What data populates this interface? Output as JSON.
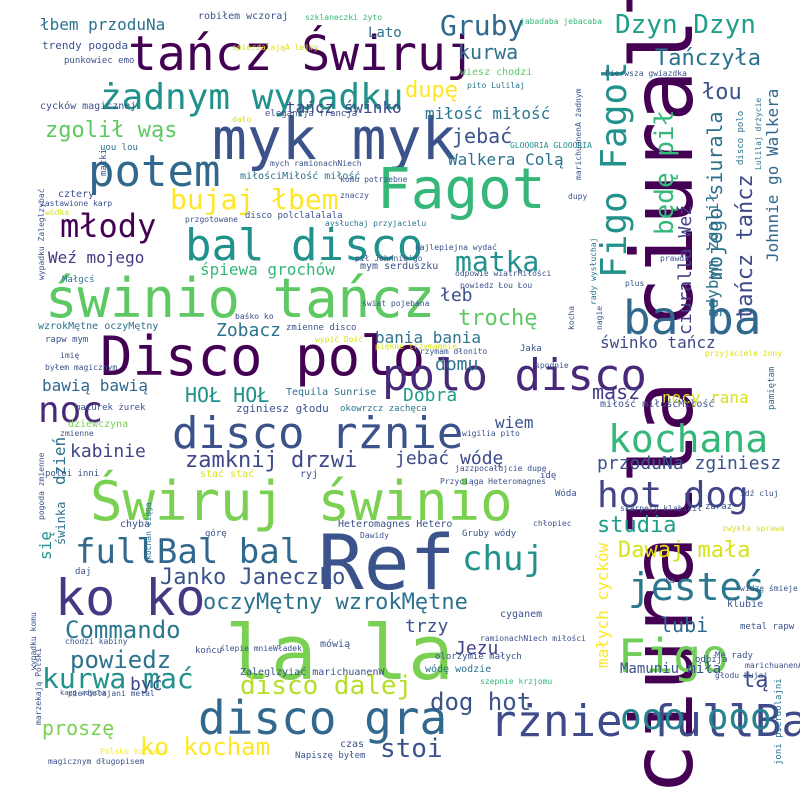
{
  "words": [
    {
      "text": "ciuralla ciuralla",
      "color": "#440154",
      "vertical": true
    },
    {
      "text": "Ref",
      "color": "#3b528b"
    },
    {
      "text": "la la",
      "color": "#7ad151"
    },
    {
      "text": "Disco polo",
      "color": "#440154"
    },
    {
      "text": "świnio tańcz",
      "color": "#5ec962"
    },
    {
      "text": "myk myk",
      "color": "#3b528b"
    },
    {
      "text": "Świruj świnio",
      "color": "#7ad151"
    },
    {
      "text": "Fagot",
      "color": "#35b779"
    },
    {
      "text": "tańcz Świruj",
      "color": "#440154"
    },
    {
      "text": "ba ba",
      "color": "#31688e"
    },
    {
      "text": "disco rżnie",
      "color": "#3b528b"
    },
    {
      "text": "bal disco",
      "color": "#21918c"
    },
    {
      "text": "polo disco",
      "color": "#482878"
    },
    {
      "text": "ko ko",
      "color": "#443983"
    },
    {
      "text": "disco gra",
      "color": "#31688e"
    },
    {
      "text": "rżnie fullBal",
      "color": "#3e4a89"
    },
    {
      "text": "Figo Fagot",
      "color": "#21918c",
      "vertical": true
    },
    {
      "text": "kochana",
      "color": "#35b779"
    },
    {
      "text": "Figo",
      "color": "#6ece58"
    },
    {
      "text": "żadnym wypadku",
      "color": "#21918c"
    },
    {
      "text": "potem",
      "color": "#31688e"
    },
    {
      "text": "hot dog",
      "color": "#414487"
    },
    {
      "text": "jesteś",
      "color": "#2a788e"
    },
    {
      "text": "ooo ooo",
      "color": "#26828e"
    },
    {
      "text": "fullBal bal",
      "color": "#31688e"
    },
    {
      "text": "chuj",
      "color": "#21918c"
    },
    {
      "text": "młody",
      "color": "#440154"
    },
    {
      "text": "noc",
      "color": "#482878"
    },
    {
      "text": "Dzyn Dzyn",
      "color": "#1f9e89"
    },
    {
      "text": "Gruby",
      "color": "#31688e"
    },
    {
      "text": "matka",
      "color": "#21918c"
    },
    {
      "text": "bujaj łbem",
      "color": "#fde725"
    },
    {
      "text": "kurwa mać",
      "color": "#21918c"
    },
    {
      "text": "Commando",
      "color": "#2a788e"
    },
    {
      "text": "powiedz",
      "color": "#2c728e"
    },
    {
      "text": "ko kocham",
      "color": "#fde725"
    },
    {
      "text": "disco dalej",
      "color": "#b5de2b"
    },
    {
      "text": "dog hot",
      "color": "#3b528b"
    },
    {
      "text": "stoi",
      "color": "#3b528b"
    },
    {
      "text": "oczyMętny wzrokMętne",
      "color": "#2c728e"
    },
    {
      "text": "zamknij drzwi",
      "color": "#3e4a89"
    },
    {
      "text": "Janko Janeczko",
      "color": "#3b528b"
    },
    {
      "text": "Dawaj mała",
      "color": "#d8e219"
    },
    {
      "text": "studia",
      "color": "#1f9e89"
    },
    {
      "text": "przoduNa zginiesz",
      "color": "#3b528b"
    },
    {
      "text": "kurwa",
      "color": "#2c728e"
    },
    {
      "text": "Tańczyła",
      "color": "#2c728e"
    },
    {
      "text": "łou",
      "color": "#3b528b"
    },
    {
      "text": "dupę",
      "color": "#fde725"
    },
    {
      "text": "będę pił",
      "color": "#35b779",
      "vertical": true
    },
    {
      "text": "tańcz tańcz",
      "color": "#3e4a89",
      "vertical": true
    },
    {
      "text": "mojego siurala",
      "color": "#2c728e",
      "vertical": true
    },
    {
      "text": "Johnnie go Walkera",
      "color": "#31688e",
      "vertical": true
    },
    {
      "text": "ciuralla Weź",
      "color": "#433e85",
      "vertical": true
    },
    {
      "text": "gdybym zgolił",
      "color": "#2c728e",
      "vertical": true
    },
    {
      "text": "zgolił wąs",
      "color": "#5ec962"
    },
    {
      "text": "jebać",
      "color": "#3b528b"
    },
    {
      "text": "miłość miłość",
      "color": "#2a788e"
    },
    {
      "text": "tańcz świnko",
      "color": "#3e4a89"
    },
    {
      "text": "Walkera Colą",
      "color": "#2c728e"
    },
    {
      "text": "Weź mojego",
      "color": "#443983"
    },
    {
      "text": "śpiewa grochów",
      "color": "#35b779"
    },
    {
      "text": "łeb",
      "color": "#3b528b"
    },
    {
      "text": "trochę",
      "color": "#5ec962"
    },
    {
      "text": "Zobacz",
      "color": "#2c728e"
    },
    {
      "text": "bania bania",
      "color": "#2c728e"
    },
    {
      "text": "domu",
      "color": "#2c728e"
    },
    {
      "text": "HOŁ HOŁ",
      "color": "#21918c"
    },
    {
      "text": "bawią bawią",
      "color": "#31688e"
    },
    {
      "text": "Dobra",
      "color": "#1f9e89"
    },
    {
      "text": "masz",
      "color": "#443983"
    },
    {
      "text": "nocy rana",
      "color": "#d8e219"
    },
    {
      "text": "świnko tańcz",
      "color": "#3e4a89"
    },
    {
      "text": "wiem",
      "color": "#3b528b"
    },
    {
      "text": "kabinie",
      "color": "#414487"
    },
    {
      "text": "jebać wódę",
      "color": "#3e4a89"
    },
    {
      "text": "dzień",
      "color": "#2c728e",
      "vertical": true
    },
    {
      "text": "się",
      "color": "#21918c",
      "vertical": true
    },
    {
      "text": "Jezu",
      "color": "#414487"
    },
    {
      "text": "trzy",
      "color": "#3b528b"
    },
    {
      "text": "lubi",
      "color": "#31688e"
    },
    {
      "text": "tą",
      "color": "#3e4a89"
    },
    {
      "text": "być",
      "color": "#3e4a89"
    },
    {
      "text": "proszę",
      "color": "#7ad151"
    },
    {
      "text": "Mamuniu miła",
      "color": "#3b528b"
    },
    {
      "text": "małych cycków",
      "color": "#fde725",
      "vertical": true
    },
    {
      "text": "Lato",
      "color": "#2c728e"
    },
    {
      "text": "łbem przoduNa",
      "color": "#2c728e"
    },
    {
      "text": "robiłem wczoraj",
      "color": "#3b528b"
    },
    {
      "text": "trendy pogoda",
      "color": "#3b528b"
    },
    {
      "text": "punkowiec emo",
      "color": "#3b528b"
    },
    {
      "text": "cycków magicznej",
      "color": "#3b528b"
    },
    {
      "text": "szklaneczki żyto",
      "color": "#35b779"
    },
    {
      "text": "jabadaba jebacaba",
      "color": "#35b779"
    },
    {
      "text": "wiesz chodzi",
      "color": "#5ec962"
    },
    {
      "text": "Pierwsza gwiazdka",
      "color": "#3b528b"
    },
    {
      "text": "pito Lulilaj",
      "color": "#2c728e"
    },
    {
      "text": "elegancja francja",
      "color": "#3b528b"
    },
    {
      "text": "GLOOORIA GLOOORIA",
      "color": "#21918c"
    },
    {
      "text": "mych ramionachNiech",
      "color": "#3b528b"
    },
    {
      "text": "miłościMiłość miłość",
      "color": "#2c728e"
    },
    {
      "text": "komu potrzebne",
      "color": "#3b528b"
    },
    {
      "text": "disco polclalalala",
      "color": "#3b528b"
    },
    {
      "text": "najlepiejna wydać",
      "color": "#3b528b"
    },
    {
      "text": "pił Johnnie'go",
      "color": "#3b528b"
    },
    {
      "text": "mym serduszku",
      "color": "#3b528b"
    },
    {
      "text": "świat pojebana",
      "color": "#3b528b"
    },
    {
      "text": "Tequila Sunrise",
      "color": "#2c728e"
    },
    {
      "text": "zginiesz głodu",
      "color": "#3b528b"
    },
    {
      "text": "Heteromagnes Hetero",
      "color": "#3b528b"
    },
    {
      "text": "Gruby wódy",
      "color": "#3b528b"
    },
    {
      "text": "mówią",
      "color": "#3b528b"
    },
    {
      "text": "Zaleglzyiać marichuanenW",
      "color": "#3b528b"
    },
    {
      "text": "czas",
      "color": "#3b528b"
    },
    {
      "text": "Napiszę byłem",
      "color": "#3b528b"
    },
    {
      "text": "uou lou",
      "color": "#2c728e"
    },
    {
      "text": "matki",
      "color": "#3b528b"
    },
    {
      "text": "cztery",
      "color": "#3b528b"
    },
    {
      "text": "wódka",
      "color": "#d8e219"
    },
    {
      "text": "Małgcś",
      "color": "#2c728e"
    },
    {
      "text": "wzrokMętne oczyMętny",
      "color": "#2c728e"
    },
    {
      "text": "rapw mym",
      "color": "#3b528b"
    },
    {
      "text": "imię",
      "color": "#3b528b"
    },
    {
      "text": "byłem magicznym",
      "color": "#3b528b"
    },
    {
      "text": "dziewczyna",
      "color": "#7ad151"
    },
    {
      "text": "mazurek żurek",
      "color": "#3b528b"
    },
    {
      "text": "chyba",
      "color": "#3b528b"
    },
    {
      "text": "daj",
      "color": "#3b528b"
    },
    {
      "text": "końcu",
      "color": "#3b528b"
    },
    {
      "text": "cyganem",
      "color": "#3b528b"
    },
    {
      "text": "klubie",
      "color": "#3b528b"
    },
    {
      "text": "metal rapw",
      "color": "#3b528b"
    },
    {
      "text": "odbija",
      "color": "#3b528b"
    },
    {
      "text": "zwykła sprawa",
      "color": "#d8e219"
    },
    {
      "text": "widzę śmieje",
      "color": "#3b528b"
    },
    {
      "text": "zaraz",
      "color": "#3b528b"
    },
    {
      "text": "pamiętam",
      "color": "#2c728e",
      "vertical": true
    },
    {
      "text": "przyjaciele żony",
      "color": "#d8e219"
    },
    {
      "text": "odpowie wiatrMiłości",
      "color": "#3b528b"
    },
    {
      "text": "powiedz Łou Łou",
      "color": "#3b528b"
    },
    {
      "text": "okowrzcz zachęca",
      "color": "#2c728e"
    },
    {
      "text": "Przyciąga Heteromagnes",
      "color": "#3b528b"
    },
    {
      "text": "idę",
      "color": "#3b528b"
    },
    {
      "text": "Wóda",
      "color": "#3b528b"
    },
    {
      "text": "górę",
      "color": "#3b528b"
    },
    {
      "text": "Dawidy",
      "color": "#3b528b"
    },
    {
      "text": "chłopiec",
      "color": "#3b528b"
    },
    {
      "text": "Jaka",
      "color": "#3b528b"
    },
    {
      "text": "spodnie",
      "color": "#3b528b"
    },
    {
      "text": "prawda",
      "color": "#3b528b"
    },
    {
      "text": "plus",
      "color": "#3b528b"
    },
    {
      "text": "nagie",
      "color": "#3b528b",
      "vertical": true
    },
    {
      "text": "kocha",
      "color": "#3b528b",
      "vertical": true
    },
    {
      "text": "rady wysłuchaj",
      "color": "#2c728e",
      "vertical": true
    },
    {
      "text": "Lulilaj drżycie",
      "color": "#2c728e",
      "vertical": true
    },
    {
      "text": "disco polo",
      "color": "#2c728e",
      "vertical": true
    },
    {
      "text": "wypadku Zaleglzybać",
      "color": "#3b528b",
      "vertical": true
    },
    {
      "text": "wypadku komu",
      "color": "#3b528b",
      "vertical": true
    },
    {
      "text": "pogoda zmienne",
      "color": "#3b528b",
      "vertical": true
    },
    {
      "text": "świnka",
      "color": "#2c728e",
      "vertical": true
    },
    {
      "text": "joni pierdolajni",
      "color": "#2c728e",
      "vertical": true
    },
    {
      "text": "marichuanenA żadnym",
      "color": "#3b528b",
      "vertical": true
    },
    {
      "text": "marichuanenA żadnym",
      "color": "#3b528b"
    },
    {
      "text": "Polsko kochano",
      "color": "#fde725"
    },
    {
      "text": "magicznym długopisem",
      "color": "#3b528b"
    },
    {
      "text": "pierdolajani metal",
      "color": "#3b528b"
    },
    {
      "text": "marzekają Polski",
      "color": "#3b528b",
      "vertical": true
    },
    {
      "text": "szepnie krzjomu",
      "color": "#35b779"
    },
    {
      "text": "Me rady",
      "color": "#3b528b"
    },
    {
      "text": "głodu bujaj",
      "color": "#3b528b"
    },
    {
      "text": "wódę wodzie",
      "color": "#2c728e"
    },
    {
      "text": "olorzymie małych",
      "color": "#3b528b"
    },
    {
      "text": "kochan ciąga",
      "color": "#2c728e",
      "vertical": true
    },
    {
      "text": "jazzpocałujcie dupę",
      "color": "#3b528b"
    },
    {
      "text": "skarpety klabicił",
      "color": "#3b528b"
    },
    {
      "text": "trzymam dłonito",
      "color": "#3b528b"
    },
    {
      "text": "piękne trzymamnie",
      "color": "#d8e219"
    },
    {
      "text": "zmienne disco",
      "color": "#3b528b"
    },
    {
      "text": "baśko ko",
      "color": "#3b528b"
    },
    {
      "text": "wypić Dość",
      "color": "#d8e219"
    },
    {
      "text": "zastawione karp",
      "color": "#3b528b"
    },
    {
      "text": "znaczy",
      "color": "#3b528b"
    },
    {
      "text": "dupy",
      "color": "#3b528b"
    },
    {
      "text": "ślepie mnieWładek",
      "color": "#3b528b"
    },
    {
      "text": "ramionachNiech miłości",
      "color": "#3b528b"
    },
    {
      "text": "chodzi kabiny",
      "color": "#3b528b"
    },
    {
      "text": "karp zdycha",
      "color": "#3b528b"
    },
    {
      "text": "Ca",
      "color": "#3b528b"
    },
    {
      "text": "miłość miłośćMiłość",
      "color": "#3b528b"
    },
    {
      "text": "poloi inni",
      "color": "#3b528b"
    },
    {
      "text": "stać stać",
      "color": "#d8e219"
    },
    {
      "text": "ryj",
      "color": "#3b528b"
    },
    {
      "text": "wigilia pito",
      "color": "#3b528b"
    },
    {
      "text": "dało",
      "color": "#d8e219"
    },
    {
      "text": "przgotowane",
      "color": "#3b528b"
    },
    {
      "text": "aysłuchaj przyjacielu",
      "color": "#2c728e"
    },
    {
      "text": "spierdalająA lejmy",
      "color": "#d8e219"
    },
    {
      "text": "idź cluj",
      "color": "#3b528b"
    },
    {
      "text": "zmienne",
      "color": "#3b528b"
    }
  ]
}
